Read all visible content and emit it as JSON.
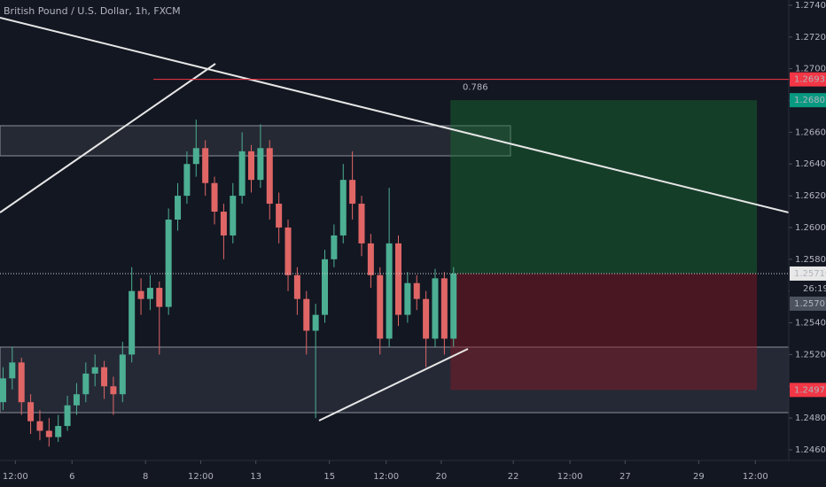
{
  "chart_data": {
    "type": "candlestick",
    "title": "British Pound / U.S. Dollar, 1h, FXCM",
    "up_color": "#4caf93",
    "down_color": "#e06666",
    "x": [
      1,
      4,
      7,
      10,
      13,
      16,
      19,
      22,
      25,
      28,
      31,
      34,
      37,
      40,
      43,
      46,
      49,
      52,
      55,
      58,
      61,
      64,
      67,
      70,
      73,
      76,
      79,
      82,
      85,
      88,
      91,
      94,
      97,
      100,
      103,
      106,
      109,
      112,
      115,
      118,
      121,
      124,
      127,
      130,
      133,
      136,
      139,
      142,
      145,
      148
    ],
    "ohlc": [
      [
        1.249,
        1.2512,
        1.2485,
        1.2505
      ],
      [
        1.2505,
        1.2525,
        1.2498,
        1.2515
      ],
      [
        1.2515,
        1.2518,
        1.2482,
        1.249
      ],
      [
        1.249,
        1.2495,
        1.247,
        1.2478
      ],
      [
        1.2478,
        1.2485,
        1.2466,
        1.2472
      ],
      [
        1.2472,
        1.248,
        1.2462,
        1.2468
      ],
      [
        1.2468,
        1.2482,
        1.2465,
        1.2475
      ],
      [
        1.2475,
        1.2494,
        1.2472,
        1.2488
      ],
      [
        1.2488,
        1.2502,
        1.2482,
        1.2495
      ],
      [
        1.2495,
        1.2515,
        1.249,
        1.2508
      ],
      [
        1.2508,
        1.252,
        1.25,
        1.2512
      ],
      [
        1.2512,
        1.2516,
        1.2492,
        1.25
      ],
      [
        1.25,
        1.2506,
        1.2482,
        1.2495
      ],
      [
        1.2495,
        1.2528,
        1.249,
        1.252
      ],
      [
        1.252,
        1.2575,
        1.2515,
        1.256
      ],
      [
        1.256,
        1.2568,
        1.2545,
        1.2555
      ],
      [
        1.2555,
        1.257,
        1.2548,
        1.2562
      ],
      [
        1.2562,
        1.2566,
        1.252,
        1.255
      ],
      [
        1.255,
        1.2612,
        1.2545,
        1.2605
      ],
      [
        1.2605,
        1.2628,
        1.2598,
        1.262
      ],
      [
        1.262,
        1.2648,
        1.2615,
        1.264
      ],
      [
        1.264,
        1.2668,
        1.2632,
        1.265
      ],
      [
        1.265,
        1.2655,
        1.262,
        1.2628
      ],
      [
        1.2628,
        1.2632,
        1.2602,
        1.261
      ],
      [
        1.261,
        1.2615,
        1.258,
        1.2595
      ],
      [
        1.2595,
        1.2628,
        1.259,
        1.262
      ],
      [
        1.262,
        1.266,
        1.2615,
        1.2648
      ],
      [
        1.2648,
        1.2652,
        1.2622,
        1.263
      ],
      [
        1.263,
        1.2665,
        1.2625,
        1.265
      ],
      [
        1.265,
        1.2655,
        1.2605,
        1.2615
      ],
      [
        1.2615,
        1.2622,
        1.259,
        1.26
      ],
      [
        1.26,
        1.2605,
        1.256,
        1.257
      ],
      [
        1.257,
        1.2575,
        1.2545,
        1.2555
      ],
      [
        1.2555,
        1.256,
        1.252,
        1.2535
      ],
      [
        1.2535,
        1.2552,
        1.248,
        1.2545
      ],
      [
        1.2545,
        1.2586,
        1.254,
        1.258
      ],
      [
        1.258,
        1.2602,
        1.2575,
        1.2595
      ],
      [
        1.2595,
        1.264,
        1.259,
        1.263
      ],
      [
        1.263,
        1.2648,
        1.2605,
        1.2615
      ],
      [
        1.2615,
        1.262,
        1.2582,
        1.259
      ],
      [
        1.259,
        1.2596,
        1.2562,
        1.257
      ],
      [
        1.257,
        1.2575,
        1.252,
        1.253
      ],
      [
        1.253,
        1.2625,
        1.2525,
        1.259
      ],
      [
        1.259,
        1.2595,
        1.2538,
        1.2545
      ],
      [
        1.2545,
        1.2572,
        1.254,
        1.2565
      ],
      [
        1.2565,
        1.257,
        1.2548,
        1.2555
      ],
      [
        1.2555,
        1.256,
        1.2512,
        1.253
      ],
      [
        1.253,
        1.2574,
        1.2525,
        1.2568
      ],
      [
        1.2568,
        1.2572,
        1.252,
        1.253
      ],
      [
        1.253,
        1.2575,
        1.2525,
        1.2571
      ]
    ],
    "xlim": [
      0,
      257.4
    ],
    "xticks": [
      {
        "value": 5,
        "label": "12:00"
      },
      {
        "value": 23.5,
        "label": "6"
      },
      {
        "value": 47.5,
        "label": "8"
      },
      {
        "value": 65.5,
        "label": "12:00"
      },
      {
        "value": 83.5,
        "label": "13"
      },
      {
        "value": 107.5,
        "label": "15"
      },
      {
        "value": 126,
        "label": "12:00"
      },
      {
        "value": 144,
        "label": "20"
      },
      {
        "value": 167.5,
        "label": "22"
      },
      {
        "value": 186,
        "label": "12:00"
      },
      {
        "value": 204,
        "label": "27"
      },
      {
        "value": 228,
        "label": "29"
      },
      {
        "value": 246.5,
        "label": "12:00"
      }
    ],
    "ylim": [
      1.24533,
      1.27433
    ],
    "yticks": [
      {
        "value": 1.274,
        "label": "1.27400"
      },
      {
        "value": 1.272,
        "label": "1.27200"
      },
      {
        "value": 1.27,
        "label": "1.27000"
      },
      {
        "value": 1.268,
        "label": "1.26800"
      },
      {
        "value": 1.266,
        "label": "1.26600"
      },
      {
        "value": 1.264,
        "label": "1.26400"
      },
      {
        "value": 1.262,
        "label": "1.26200"
      },
      {
        "value": 1.26,
        "label": "1.26000"
      },
      {
        "value": 1.258,
        "label": "1.25800"
      },
      {
        "value": 1.256,
        "label": "1.25600"
      },
      {
        "value": 1.254,
        "label": "1.25400"
      },
      {
        "value": 1.252,
        "label": "1.25200"
      },
      {
        "value": 1.25,
        "label": "1.25000"
      },
      {
        "value": 1.248,
        "label": "1.24800"
      },
      {
        "value": 1.246,
        "label": "1.24600"
      }
    ],
    "markers": [
      {
        "price": 1.26933,
        "color": "#f23645"
      },
      {
        "price": 1.26802,
        "color": "#089981"
      },
      {
        "price": 1.2571,
        "label": "1.25710",
        "color": "#e8e8e8"
      },
      {
        "price": 1.24977,
        "color": "#f23645"
      }
    ],
    "countdown": "26:19",
    "crosshair_label": "1.25707",
    "fib_label": "0.786",
    "position_x": [
      147,
      247
    ]
  }
}
